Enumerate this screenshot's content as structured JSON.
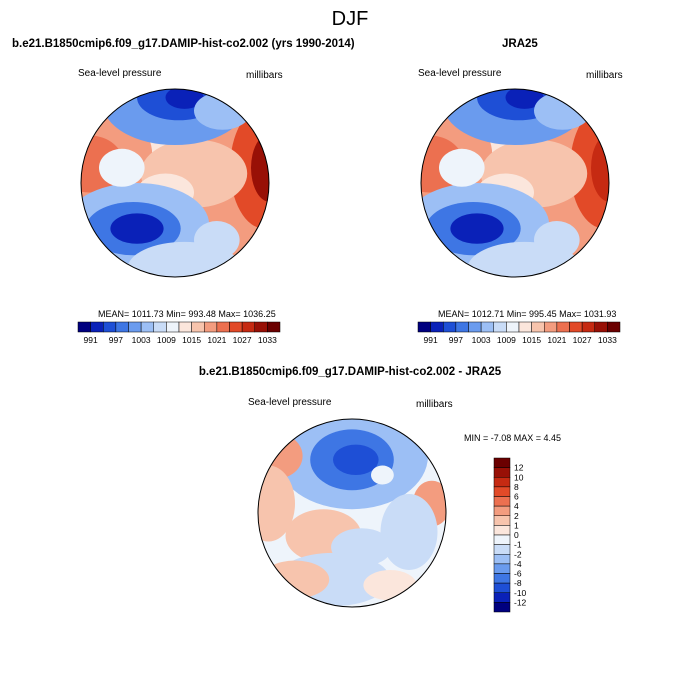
{
  "title": "DJF",
  "colors": {
    "levels": [
      "#00007f",
      "#0a21b8",
      "#1e4fd6",
      "#3e76e4",
      "#6a9bee",
      "#9cbff5",
      "#c9dcf7",
      "#eef4fb",
      "#fbe6dc",
      "#f7c4ad",
      "#f39c7f",
      "#ec7050",
      "#e24a28",
      "#c62a12",
      "#981006",
      "#6b0000"
    ],
    "diff_levels": [
      "#00007f",
      "#0a21b8",
      "#1e4fd6",
      "#3e76e4",
      "#6a9bee",
      "#9cbff5",
      "#c9dcf7",
      "#eef4fb",
      "#fbe6dc",
      "#f7c4ad",
      "#f39c7f",
      "#ec7050",
      "#e24a28",
      "#c62a12",
      "#981006",
      "#6b0000"
    ]
  },
  "chart_data": [
    {
      "type": "heatmap",
      "projection": "north-polar-stereographic",
      "title": "b.e21.B1850cmip6.f09_g17.DAMIP-hist-co2.002 (yrs 1990-2014)",
      "left_label": "Sea-level pressure",
      "right_label": "millibars",
      "stats": {
        "mean": 1011.73,
        "min": 993.48,
        "max": 1036.25
      },
      "stats_text": "MEAN= 1011.73  Min= 993.48  Max= 1036.25",
      "colorbar": {
        "orientation": "horizontal",
        "levels": [
          991,
          994,
          997,
          1000,
          1003,
          1006,
          1009,
          1012,
          1015,
          1018,
          1021,
          1024,
          1027,
          1030,
          1033
        ],
        "tick_labels": [
          "991",
          "997",
          "1003",
          "1009",
          "1015",
          "1021",
          "1027",
          "1033"
        ]
      }
    },
    {
      "type": "heatmap",
      "projection": "north-polar-stereographic",
      "title": "JRA25",
      "left_label": "Sea-level pressure",
      "right_label": "millibars",
      "stats": {
        "mean": 1012.71,
        "min": 995.45,
        "max": 1031.93
      },
      "stats_text": "MEAN= 1012.71  Min= 995.45  Max= 1031.93",
      "colorbar": {
        "orientation": "horizontal",
        "levels": [
          991,
          994,
          997,
          1000,
          1003,
          1006,
          1009,
          1012,
          1015,
          1018,
          1021,
          1024,
          1027,
          1030,
          1033
        ],
        "tick_labels": [
          "991",
          "997",
          "1003",
          "1009",
          "1015",
          "1021",
          "1027",
          "1033"
        ]
      }
    },
    {
      "type": "heatmap",
      "projection": "north-polar-stereographic",
      "title": "b.e21.B1850cmip6.f09_g17.DAMIP-hist-co2.002 - JRA25",
      "left_label": "Sea-level pressure",
      "right_label": "millibars",
      "stats": {
        "min": -7.08,
        "max": 4.45
      },
      "stats_text": "MIN =  -7.08 MAX =   4.45",
      "colorbar": {
        "orientation": "vertical",
        "levels": [
          -12,
          -10,
          -8,
          -6,
          -4,
          -2,
          -1,
          0,
          1,
          2,
          4,
          6,
          8,
          10,
          12
        ],
        "tick_labels": [
          "12",
          "10",
          "8",
          "6",
          "4",
          "2",
          "1",
          "0",
          "-1",
          "-2",
          "-4",
          "-6",
          "-8",
          "-10",
          "-12"
        ]
      }
    }
  ]
}
